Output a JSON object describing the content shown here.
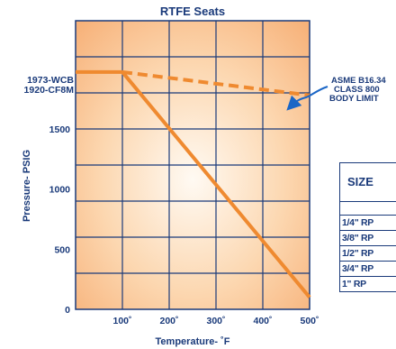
{
  "chart_data": {
    "type": "line",
    "title": "RTFE Seats",
    "xlabel": "Temperature- ˚F",
    "ylabel": "Pressure- PSIG",
    "xlim": [
      0,
      500
    ],
    "ylim": [
      0,
      2400
    ],
    "x_ticks": [
      "100˚",
      "200˚",
      "300˚",
      "400˚",
      "500˚"
    ],
    "x_tick_values": [
      100,
      200,
      300,
      400,
      500
    ],
    "y_ticks": [
      "0",
      "500",
      "1000",
      "1500"
    ],
    "y_tick_values": [
      0,
      500,
      1000,
      1500
    ],
    "grid": true,
    "series": [
      {
        "style": "solid",
        "color": "#ef8a30",
        "x": [
          0,
          100,
          500
        ],
        "y": [
          1973,
          1973,
          100
        ]
      },
      {
        "style": "dashed",
        "color": "#ef8a30",
        "x": [
          100,
          500
        ],
        "y": [
          1973,
          1780
        ]
      }
    ],
    "annotations": {
      "rating_label_1": "1973-WCB",
      "rating_label_2": "1920-CF8M",
      "limit_line_1": "ASME B16.34",
      "limit_line_2": "CLASS 800",
      "limit_line_3": "BODY LIMIT"
    }
  },
  "size_table": {
    "header": "SIZE",
    "rows": [
      "1/4\" RP",
      "3/8\" RP",
      "1/2\" RP",
      "3/4\" RP",
      "1\" RP"
    ]
  },
  "colors": {
    "text": "#1a3a7a",
    "line": "#ef8a30",
    "plot_bg_center": "#fffaf3",
    "plot_bg_edge": "#f7b27a",
    "grid": "#1a3a7a"
  }
}
